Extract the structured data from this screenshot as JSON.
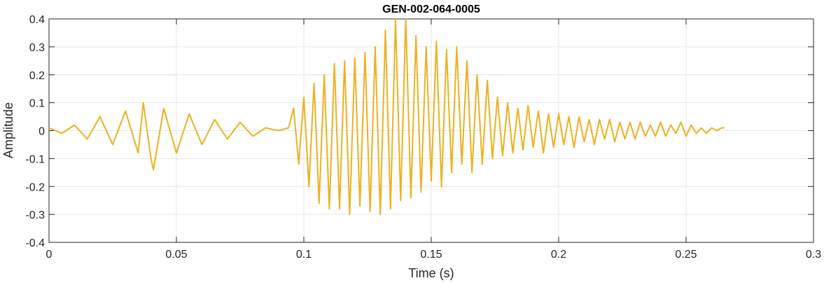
{
  "chart_data": {
    "type": "line",
    "title": "GEN-002-064-0005",
    "xlabel": "Time (s)",
    "ylabel": "Amplitude",
    "xlim": [
      0,
      0.3
    ],
    "ylim": [
      -0.4,
      0.4
    ],
    "x_ticks": [
      0,
      0.05,
      0.1,
      0.15,
      0.2,
      0.25,
      0.3
    ],
    "x_tick_labels": [
      "0",
      "0.05",
      "0.1",
      "0.15",
      "0.2",
      "0.25",
      "0.3"
    ],
    "y_ticks": [
      -0.4,
      -0.3,
      -0.2,
      -0.1,
      0,
      0.1,
      0.2,
      0.3,
      0.4
    ],
    "y_tick_labels": [
      "-0.4",
      "-0.3",
      "-0.2",
      "-0.1",
      "0",
      "0.1",
      "0.2",
      "0.3",
      "0.4"
    ],
    "grid": true,
    "line_color": "#EDB120",
    "series": [
      {
        "x": [
          0,
          0.005,
          0.01,
          0.015,
          0.02,
          0.025,
          0.03,
          0.035,
          0.037,
          0.04,
          0.041,
          0.045,
          0.05,
          0.055,
          0.06,
          0.065,
          0.07,
          0.075,
          0.08,
          0.085,
          0.09,
          0.094,
          0.096,
          0.098,
          0.1,
          0.102,
          0.104,
          0.106,
          0.108,
          0.11,
          0.112,
          0.114,
          0.116,
          0.118,
          0.12,
          0.122,
          0.124,
          0.126,
          0.128,
          0.13,
          0.132,
          0.134,
          0.136,
          0.138,
          0.14,
          0.142,
          0.144,
          0.146,
          0.148,
          0.15,
          0.152,
          0.154,
          0.156,
          0.158,
          0.16,
          0.162,
          0.164,
          0.166,
          0.168,
          0.17,
          0.172,
          0.174,
          0.176,
          0.178,
          0.18,
          0.182,
          0.184,
          0.186,
          0.188,
          0.19,
          0.192,
          0.194,
          0.196,
          0.198,
          0.2,
          0.202,
          0.204,
          0.206,
          0.208,
          0.21,
          0.212,
          0.214,
          0.216,
          0.218,
          0.22,
          0.222,
          0.224,
          0.226,
          0.228,
          0.23,
          0.232,
          0.234,
          0.236,
          0.238,
          0.24,
          0.242,
          0.244,
          0.246,
          0.248,
          0.25,
          0.252,
          0.254,
          0.256,
          0.258,
          0.26,
          0.262,
          0.264,
          0.265
        ],
        "y": [
          0.01,
          -0.01,
          0.02,
          -0.03,
          0.05,
          -0.05,
          0.07,
          -0.08,
          0.1,
          -0.1,
          -0.14,
          0.08,
          -0.08,
          0.06,
          -0.05,
          0.04,
          -0.03,
          0.03,
          -0.02,
          0.01,
          0.0,
          0.01,
          0.08,
          -0.12,
          0.12,
          -0.2,
          0.17,
          -0.26,
          0.2,
          -0.28,
          0.24,
          -0.28,
          0.25,
          -0.3,
          0.26,
          -0.27,
          0.28,
          -0.29,
          0.3,
          -0.3,
          0.36,
          -0.28,
          0.4,
          -0.25,
          0.4,
          -0.24,
          0.34,
          -0.22,
          0.3,
          -0.18,
          0.32,
          -0.2,
          0.29,
          -0.15,
          0.3,
          -0.12,
          0.25,
          -0.15,
          0.2,
          -0.12,
          0.18,
          -0.1,
          0.12,
          -0.09,
          0.1,
          -0.08,
          0.08,
          -0.07,
          0.09,
          -0.06,
          0.07,
          -0.08,
          0.06,
          -0.06,
          0.06,
          -0.05,
          0.05,
          -0.06,
          0.05,
          -0.04,
          0.04,
          -0.05,
          0.04,
          -0.03,
          0.04,
          -0.04,
          0.03,
          -0.03,
          0.03,
          -0.03,
          0.03,
          -0.02,
          0.02,
          -0.02,
          0.03,
          -0.02,
          0.02,
          -0.01,
          0.03,
          -0.02,
          0.02,
          -0.01,
          0.01,
          -0.01,
          0.01,
          0.0,
          0.01,
          0.01
        ]
      }
    ]
  }
}
